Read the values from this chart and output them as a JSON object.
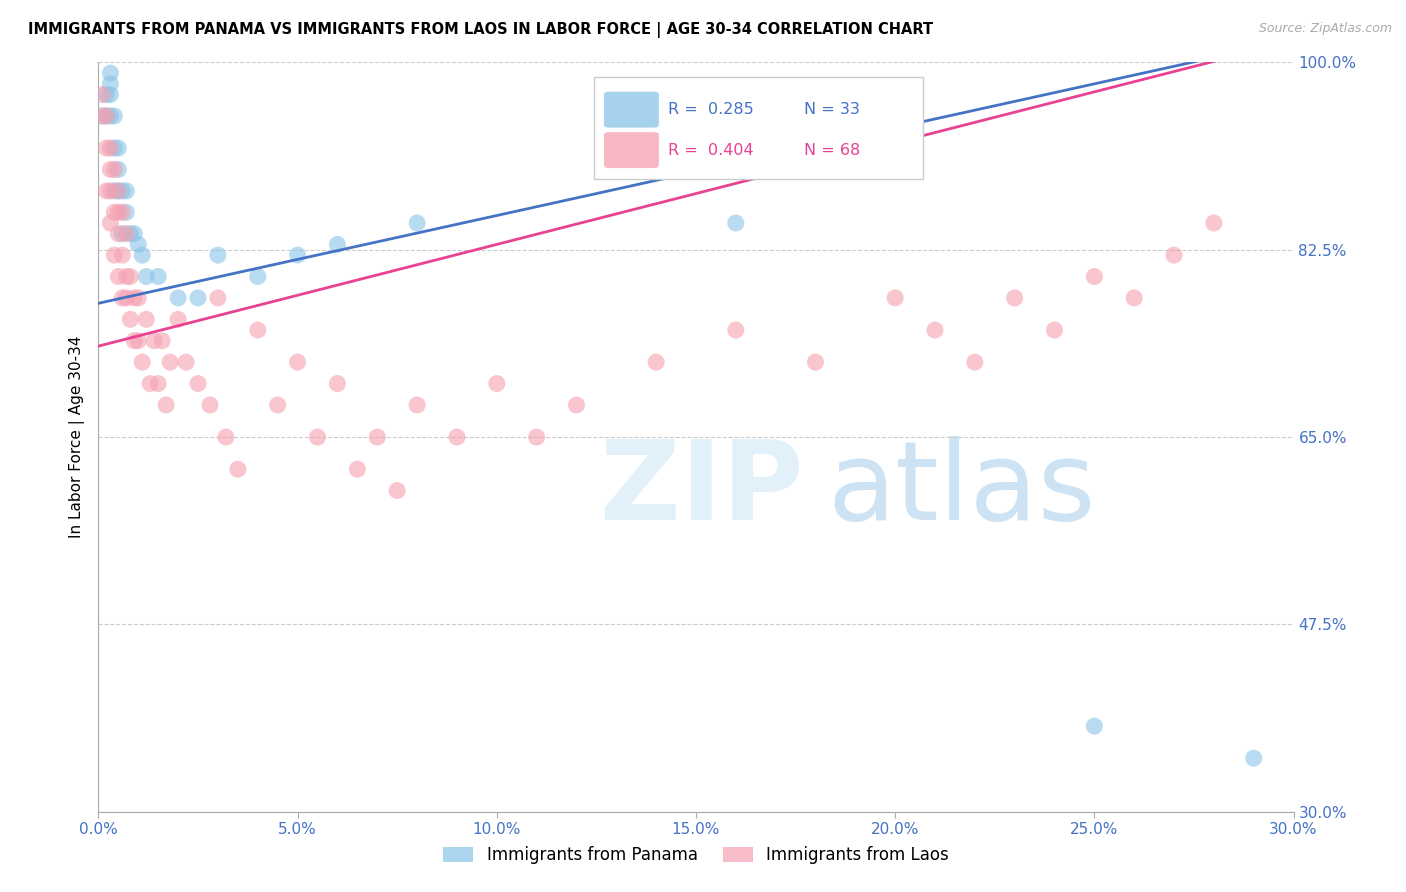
{
  "title": "IMMIGRANTS FROM PANAMA VS IMMIGRANTS FROM LAOS IN LABOR FORCE | AGE 30-34 CORRELATION CHART",
  "source": "Source: ZipAtlas.com",
  "xlim": [
    0.0,
    0.3
  ],
  "ylim": [
    0.3,
    1.0
  ],
  "ytick_vals": [
    0.3,
    0.475,
    0.65,
    0.825,
    1.0
  ],
  "xtick_vals": [
    0.0,
    0.05,
    0.1,
    0.15,
    0.2,
    0.25,
    0.3
  ],
  "panama_color": "#89c4e8",
  "laos_color": "#f5a0b0",
  "panama_line_color": "#4472c4",
  "laos_line_color": "#e84393",
  "panama_label": "Immigrants from Panama",
  "laos_label": "Immigrants from Laos",
  "ylabel": "In Labor Force | Age 30-34",
  "panama_x": [
    0.001,
    0.002,
    0.002,
    0.003,
    0.003,
    0.003,
    0.003,
    0.004,
    0.004,
    0.004,
    0.005,
    0.005,
    0.005,
    0.006,
    0.006,
    0.007,
    0.007,
    0.008,
    0.009,
    0.01,
    0.011,
    0.012,
    0.015,
    0.02,
    0.025,
    0.03,
    0.04,
    0.05,
    0.06,
    0.08,
    0.16,
    0.25,
    0.29
  ],
  "panama_y": [
    0.95,
    0.95,
    0.97,
    0.95,
    0.97,
    0.98,
    0.99,
    0.88,
    0.92,
    0.95,
    0.88,
    0.9,
    0.92,
    0.84,
    0.88,
    0.86,
    0.88,
    0.84,
    0.84,
    0.83,
    0.82,
    0.8,
    0.8,
    0.78,
    0.78,
    0.82,
    0.8,
    0.82,
    0.83,
    0.85,
    0.85,
    0.38,
    0.35
  ],
  "laos_x": [
    0.001,
    0.001,
    0.002,
    0.002,
    0.002,
    0.003,
    0.003,
    0.003,
    0.003,
    0.004,
    0.004,
    0.004,
    0.005,
    0.005,
    0.005,
    0.005,
    0.006,
    0.006,
    0.006,
    0.007,
    0.007,
    0.007,
    0.008,
    0.008,
    0.009,
    0.009,
    0.01,
    0.01,
    0.011,
    0.012,
    0.013,
    0.014,
    0.015,
    0.016,
    0.017,
    0.018,
    0.02,
    0.022,
    0.025,
    0.028,
    0.03,
    0.032,
    0.035,
    0.04,
    0.045,
    0.05,
    0.055,
    0.06,
    0.065,
    0.07,
    0.075,
    0.08,
    0.09,
    0.1,
    0.11,
    0.12,
    0.14,
    0.16,
    0.18,
    0.2,
    0.21,
    0.22,
    0.23,
    0.24,
    0.25,
    0.26,
    0.27,
    0.28
  ],
  "laos_y": [
    0.95,
    0.97,
    0.88,
    0.92,
    0.95,
    0.85,
    0.88,
    0.9,
    0.92,
    0.82,
    0.86,
    0.9,
    0.8,
    0.84,
    0.86,
    0.88,
    0.78,
    0.82,
    0.86,
    0.78,
    0.8,
    0.84,
    0.76,
    0.8,
    0.74,
    0.78,
    0.74,
    0.78,
    0.72,
    0.76,
    0.7,
    0.74,
    0.7,
    0.74,
    0.68,
    0.72,
    0.76,
    0.72,
    0.7,
    0.68,
    0.78,
    0.65,
    0.62,
    0.75,
    0.68,
    0.72,
    0.65,
    0.7,
    0.62,
    0.65,
    0.6,
    0.68,
    0.65,
    0.7,
    0.65,
    0.68,
    0.72,
    0.75,
    0.72,
    0.78,
    0.75,
    0.72,
    0.78,
    0.75,
    0.8,
    0.78,
    0.82,
    0.85
  ]
}
